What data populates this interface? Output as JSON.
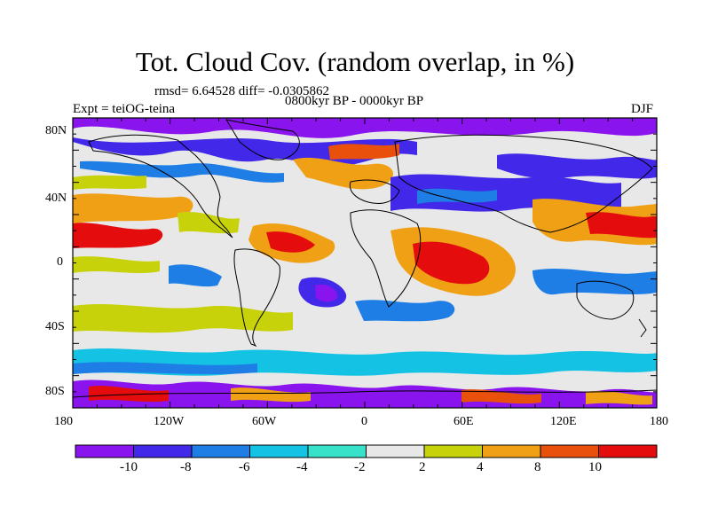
{
  "title": "Tot. Cloud Cov. (random overlap, in %)",
  "stats": "rmsd= 6.64528 diff= -0.0305862",
  "period": "0800kyr BP - 0000kyr BP",
  "experiment": "Expt = teiOG-teina",
  "season": "DJF",
  "lon_labels": [
    "180",
    "120W",
    "60W",
    "0",
    "60E",
    "120E",
    "180"
  ],
  "lat_labels": [
    "80N",
    "40N",
    "0",
    "40S",
    "80S"
  ],
  "colorbar": {
    "labels": [
      "-10",
      "-8",
      "-6",
      "-4",
      "-2",
      "2",
      "4",
      "8",
      "10"
    ],
    "colors": [
      "#8a14ee",
      "#4228e8",
      "#1e7ee6",
      "#14c2e4",
      "#38e2c8",
      "#e8e8e8",
      "#c8d20a",
      "#f0a014",
      "#e8500c",
      "#e40c0c"
    ]
  }
}
